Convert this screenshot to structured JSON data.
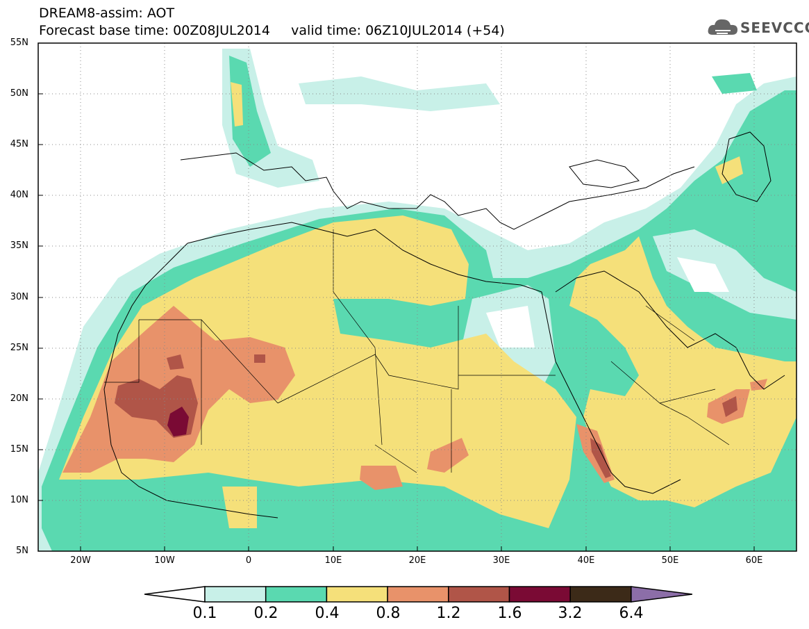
{
  "title": {
    "line1": "DREAM8-assim: AOT",
    "line2": "Forecast base time: 00Z08JUL2014     valid time: 06Z10JUL2014 (+54)"
  },
  "logo": {
    "text": "SEEVCCC",
    "icon": "cloud-icon"
  },
  "map": {
    "lat_labels": [
      "55N",
      "50N",
      "45N",
      "40N",
      "35N",
      "30N",
      "25N",
      "20N",
      "15N",
      "10N",
      "5N"
    ],
    "lon_labels": [
      "20W",
      "10W",
      "0",
      "10E",
      "20E",
      "30E",
      "40E",
      "50E",
      "60E"
    ],
    "lat_range": [
      5,
      55
    ],
    "lon_range": [
      -25,
      65
    ],
    "grid": "dotted"
  },
  "colorbar": {
    "labels": [
      "0.1",
      "0.2",
      "0.4",
      "0.8",
      "1.2",
      "1.6",
      "3.2",
      "6.4"
    ],
    "colors": [
      "#ffffff",
      "#c8f0e8",
      "#5ad9b0",
      "#f5e07a",
      "#e8926a",
      "#b05548",
      "#7a0a34",
      "#3c2a18",
      "#8c6ea8"
    ]
  }
}
